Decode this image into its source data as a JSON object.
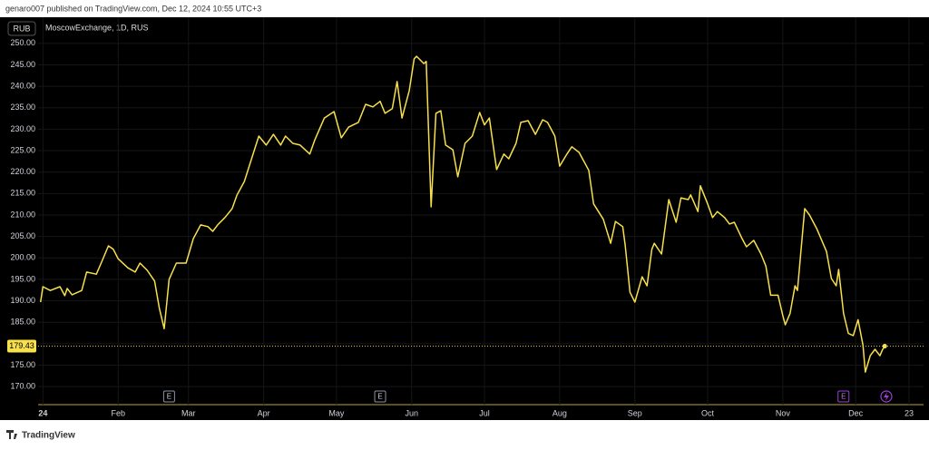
{
  "header": "genaro007 published on TradingView.com, Dec 12, 2024 10:55 UTC+3",
  "footer": "TradingView",
  "chart_data": {
    "type": "line",
    "currency": "RUB",
    "x": [
      0,
      1,
      4,
      8,
      10,
      11,
      13,
      17,
      19,
      23,
      25,
      28,
      30,
      32,
      36,
      39,
      41,
      44,
      47,
      49,
      51,
      53,
      56,
      60,
      63,
      66,
      69,
      71,
      73,
      76,
      79,
      81,
      84,
      87,
      90,
      93,
      96,
      99,
      101,
      104,
      107,
      111,
      113,
      117,
      121,
      124,
      127,
      131,
      134,
      137,
      140,
      142,
      145,
      147,
      149,
      152,
      154,
      155,
      158,
      159,
      161,
      163,
      165,
      167,
      170,
      172,
      175,
      178,
      181,
      183,
      185,
      188,
      191,
      193,
      196,
      198,
      201,
      204,
      207,
      209,
      212,
      214,
      217,
      219,
      222,
      226,
      228,
      232,
      235,
      237,
      240,
      241,
      243,
      245,
      248,
      250,
      252,
      253,
      256,
      259,
      262,
      264,
      267,
      268,
      271,
      272,
      275,
      277,
      279,
      282,
      284,
      286,
      289,
      291,
      294,
      297,
      299,
      301,
      304,
      306,
      307,
      309,
      311,
      312,
      315,
      317,
      320,
      324,
      326,
      328,
      329,
      331,
      333,
      335,
      337,
      339,
      340,
      342,
      344,
      346,
      347,
      348
    ],
    "series": [
      {
        "name": "MoscowExchange, 1D, RUS",
        "color": "#f7e04b",
        "values": [
          189.7,
          193.3,
          192.4,
          193.3,
          191.2,
          192.9,
          191.4,
          192.4,
          196.7,
          196.2,
          198.8,
          202.8,
          202.0,
          199.8,
          197.7,
          196.7,
          198.8,
          197.1,
          194.6,
          188.2,
          183.5,
          195.0,
          198.8,
          198.8,
          204.5,
          207.7,
          207.3,
          206.2,
          207.7,
          209.4,
          211.5,
          214.7,
          217.8,
          223.1,
          228.4,
          226.3,
          228.8,
          226.3,
          228.4,
          226.7,
          226.3,
          224.2,
          227.4,
          232.6,
          234.1,
          228.0,
          230.5,
          231.6,
          235.8,
          235.2,
          236.5,
          233.7,
          234.8,
          241.1,
          232.6,
          239.0,
          246.4,
          247.0,
          245.3,
          245.8,
          211.9,
          233.7,
          234.3,
          226.3,
          225.2,
          218.9,
          226.7,
          228.4,
          233.9,
          231.0,
          232.6,
          220.6,
          224.2,
          223.1,
          226.7,
          231.6,
          232.0,
          228.8,
          232.2,
          231.6,
          228.4,
          221.4,
          224.2,
          225.9,
          224.6,
          220.4,
          212.6,
          209.0,
          203.4,
          208.5,
          207.3,
          203.0,
          192.0,
          189.7,
          195.6,
          193.5,
          202.0,
          203.4,
          200.9,
          213.6,
          208.3,
          214.0,
          213.6,
          214.7,
          210.8,
          216.8,
          212.6,
          209.4,
          210.8,
          209.4,
          207.9,
          208.3,
          204.7,
          202.6,
          204.1,
          200.9,
          198.1,
          191.3,
          191.3,
          186.5,
          184.4,
          187.1,
          193.5,
          192.4,
          211.5,
          210.0,
          206.8,
          201.5,
          195.2,
          193.5,
          197.3,
          187.1,
          182.4,
          181.9,
          185.6,
          179.7,
          173.4,
          177.2,
          178.7,
          177.2,
          178.5,
          179.43
        ]
      }
    ],
    "events": [
      {
        "x": 53,
        "label": "E"
      },
      {
        "x": 140,
        "label": "E"
      },
      {
        "x": 331,
        "label": "E"
      }
    ],
    "xlim": [
      -1,
      364
    ],
    "xticks": [
      {
        "value": 1,
        "label": "24"
      },
      {
        "value": 32,
        "label": "Feb"
      },
      {
        "value": 61,
        "label": "Mar"
      },
      {
        "value": 92,
        "label": "Apr"
      },
      {
        "value": 122,
        "label": "May"
      },
      {
        "value": 153,
        "label": "Jun"
      },
      {
        "value": 183,
        "label": "Jul"
      },
      {
        "value": 214,
        "label": "Aug"
      },
      {
        "value": 245,
        "label": "Sep"
      },
      {
        "value": 275,
        "label": "Oct"
      },
      {
        "value": 306,
        "label": "Nov"
      },
      {
        "value": 336,
        "label": "Dec"
      },
      {
        "value": 358,
        "label": "23"
      }
    ],
    "ylim": [
      165.8,
      256.1
    ],
    "yticks": [
      {
        "value": 170,
        "label": "170.00"
      },
      {
        "value": 175,
        "label": "175.00"
      },
      {
        "value": 180,
        "label": "180.00"
      },
      {
        "value": 185,
        "label": "185.00"
      },
      {
        "value": 190,
        "label": "190.00"
      },
      {
        "value": 195,
        "label": "195.00"
      },
      {
        "value": 200,
        "label": "200.00"
      },
      {
        "value": 205,
        "label": "205.00"
      },
      {
        "value": 210,
        "label": "210.00"
      },
      {
        "value": 215,
        "label": "215.00"
      },
      {
        "value": 220,
        "label": "220.00"
      },
      {
        "value": 225,
        "label": "225.00"
      },
      {
        "value": 230,
        "label": "230.00"
      },
      {
        "value": 235,
        "label": "235.00"
      },
      {
        "value": 240,
        "label": "240.00"
      },
      {
        "value": 245,
        "label": "245.00"
      },
      {
        "value": 250,
        "label": "250.00"
      }
    ],
    "grid": true
  }
}
